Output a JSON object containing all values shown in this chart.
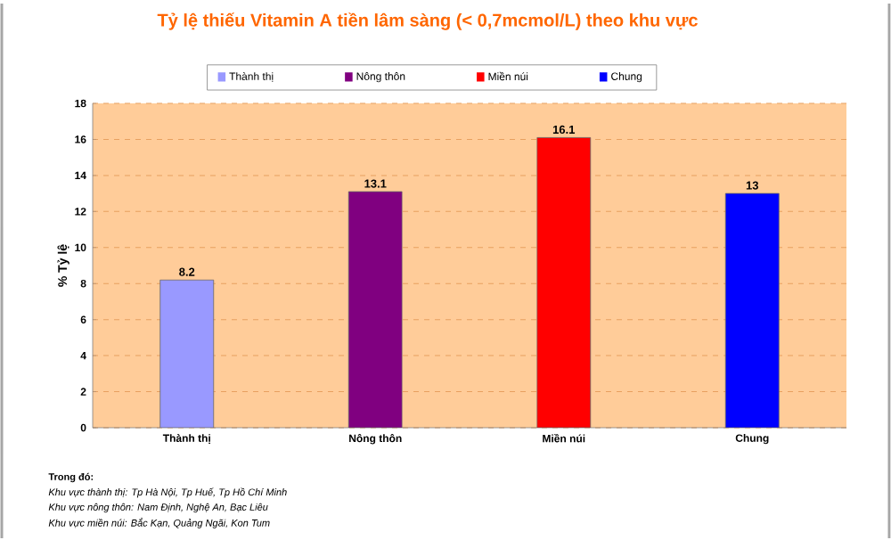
{
  "chart_data": {
    "type": "bar",
    "title": "Tỷ lệ thiếu Vitamin A tiền lâm sàng (< 0,7mcmol/L) theo khu vực",
    "ylabel": "% Tỷ lệ",
    "categories": [
      "Thành thị",
      "Nông thôn",
      "Miền núi",
      "Chung"
    ],
    "series": [
      {
        "name": "Thành thị",
        "color": "#9999ff",
        "values": [
          8.2,
          null,
          null,
          null
        ]
      },
      {
        "name": "Nông thôn",
        "color": "#800080",
        "values": [
          null,
          13.1,
          null,
          null
        ]
      },
      {
        "name": "Miền núi",
        "color": "#ff0000",
        "values": [
          null,
          null,
          16.1,
          null
        ]
      },
      {
        "name": "Chung",
        "color": "#0000ff",
        "values": [
          null,
          null,
          null,
          13
        ]
      }
    ],
    "ylim": [
      0,
      18
    ],
    "yticks": [
      0,
      2,
      4,
      6,
      8,
      10,
      12,
      14,
      16,
      18
    ],
    "grid": "y",
    "legend": "top",
    "data_labels": true,
    "annotations": [
      "Trong đó:",
      "Khu vực thành thị: Tp Hà Nội, Tp Huế, Tp Hồ Chí Minh",
      "Khu vực nông thôn: Nam Định, Nghệ An, Bạc Liêu",
      "Khu vực miền núi: Bắc Kạn, Quảng Ngãi, Kon Tum"
    ]
  }
}
